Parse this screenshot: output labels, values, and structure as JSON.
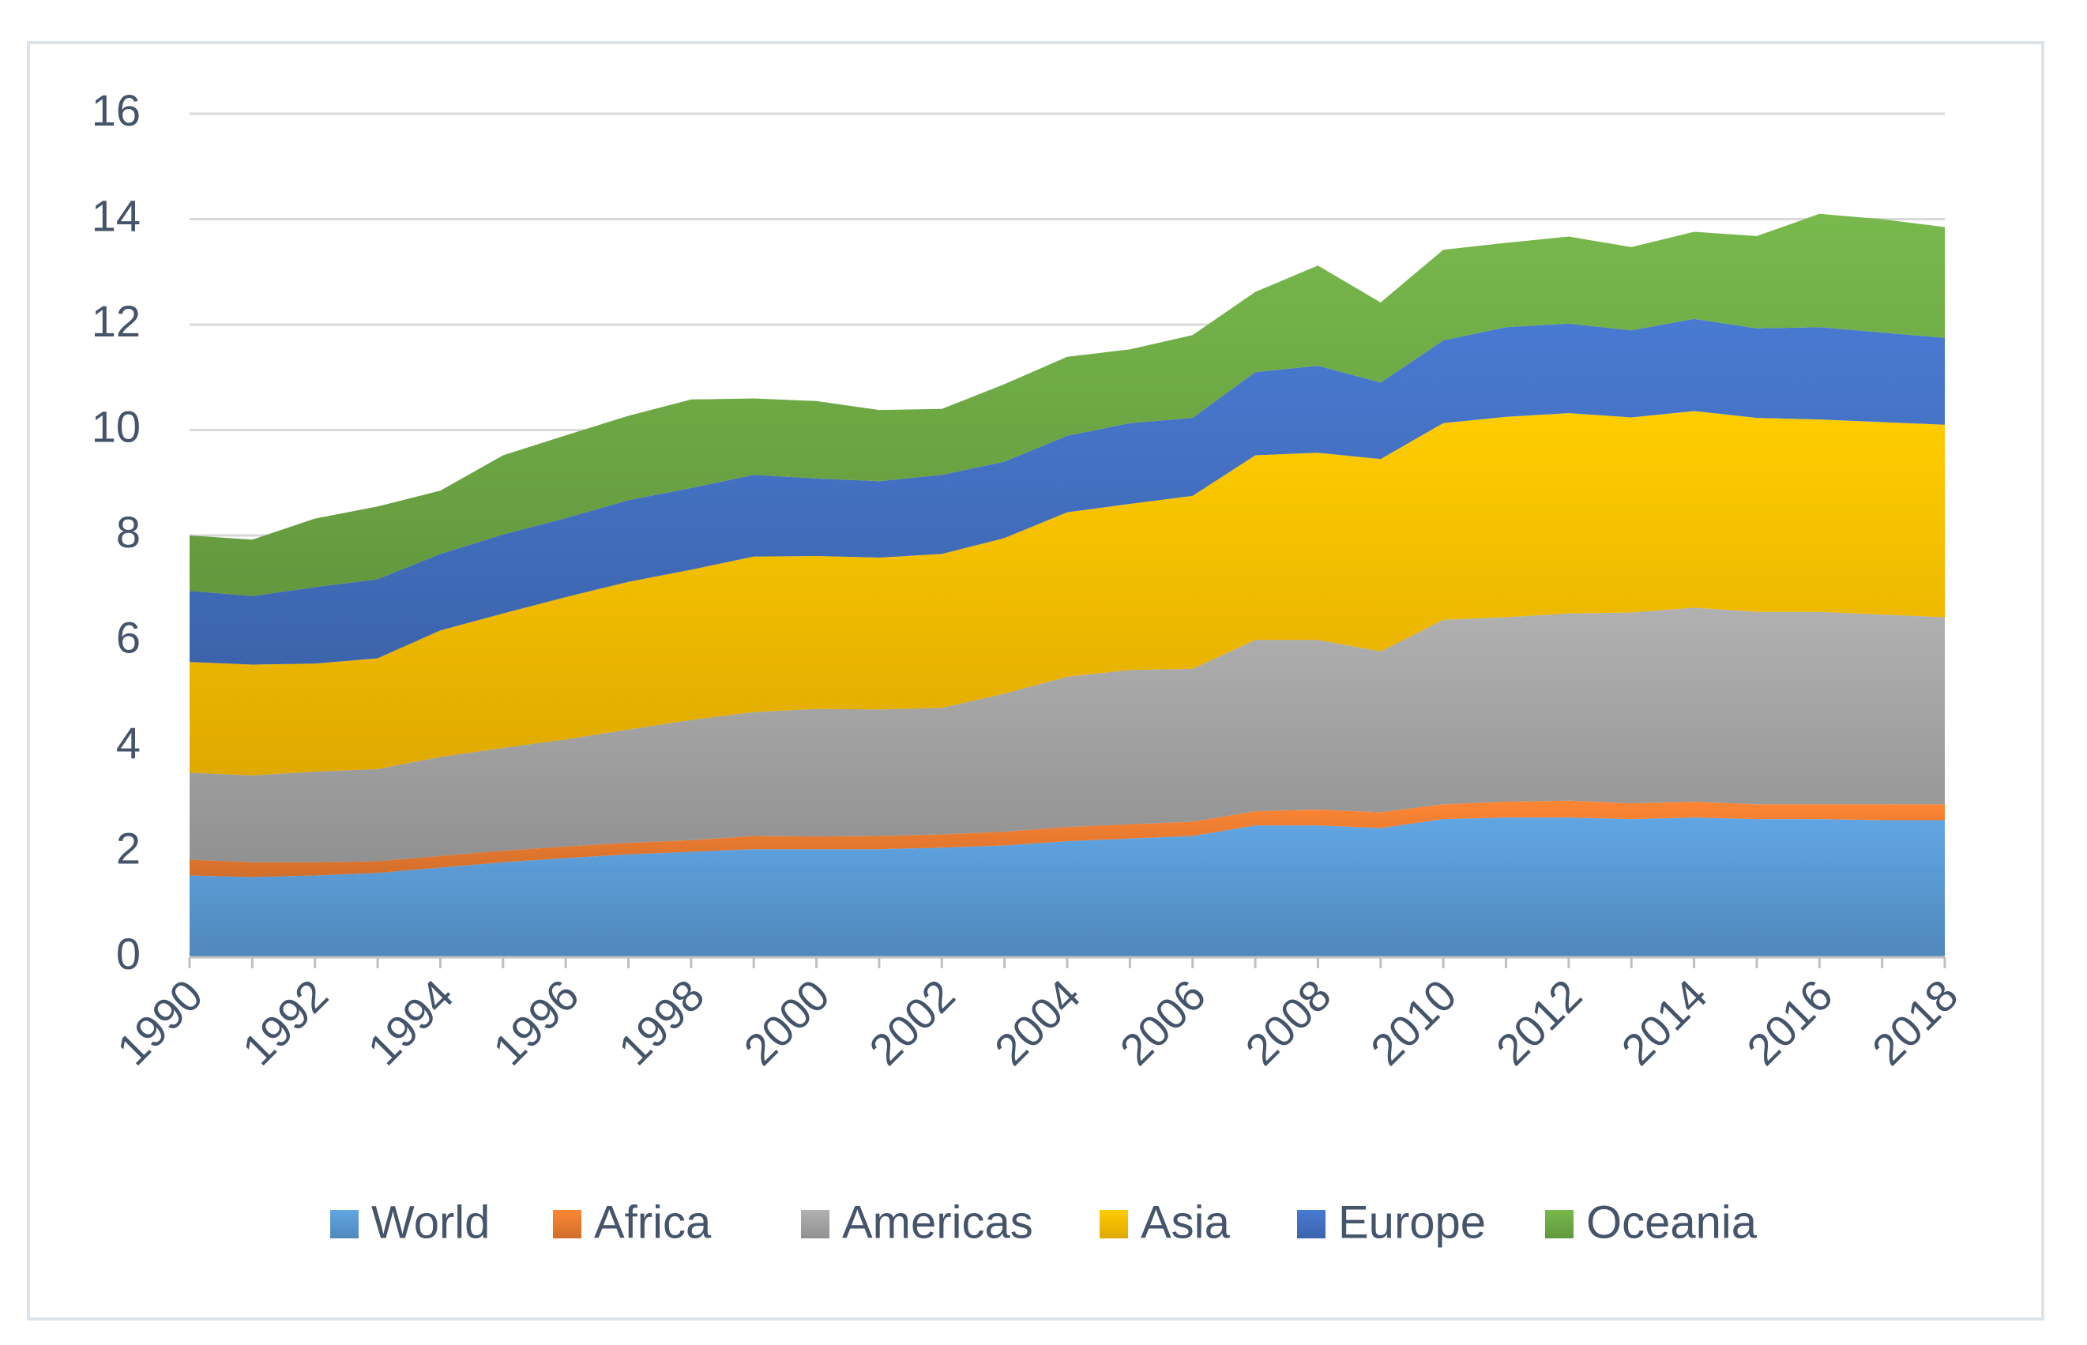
{
  "chart_data": {
    "type": "area",
    "stacked": true,
    "title": "",
    "xlabel": "",
    "ylabel": "",
    "ylim": [
      0,
      16
    ],
    "yticks": [
      0,
      2,
      4,
      6,
      8,
      10,
      12,
      14,
      16
    ],
    "xtick_labels": [
      "1990",
      "1992",
      "1994",
      "1996",
      "1998",
      "2000",
      "2002",
      "2004",
      "2006",
      "2008",
      "2010",
      "2012",
      "2014",
      "2016",
      "2018"
    ],
    "x": [
      1990,
      1991,
      1992,
      1993,
      1994,
      1995,
      1996,
      1997,
      1998,
      1999,
      2000,
      2001,
      2002,
      2003,
      2004,
      2005,
      2006,
      2007,
      2008,
      2009,
      2010,
      2011,
      2012,
      2013,
      2014,
      2015,
      2016,
      2017,
      2018
    ],
    "grid": true,
    "legend_position": "bottom",
    "series": [
      {
        "name": "World",
        "color": "#5b9bd5",
        "values": [
          1.55,
          1.52,
          1.55,
          1.6,
          1.7,
          1.8,
          1.88,
          1.95,
          2.0,
          2.05,
          2.05,
          2.05,
          2.08,
          2.12,
          2.2,
          2.25,
          2.3,
          2.5,
          2.5,
          2.45,
          2.62,
          2.65,
          2.65,
          2.62,
          2.65,
          2.62,
          2.62,
          2.6,
          2.6
        ]
      },
      {
        "name": "Africa",
        "color": "#ed7d31",
        "values": [
          0.3,
          0.28,
          0.25,
          0.22,
          0.22,
          0.22,
          0.22,
          0.22,
          0.22,
          0.25,
          0.24,
          0.25,
          0.25,
          0.26,
          0.27,
          0.27,
          0.27,
          0.27,
          0.3,
          0.3,
          0.28,
          0.3,
          0.32,
          0.3,
          0.3,
          0.28,
          0.28,
          0.3,
          0.3
        ]
      },
      {
        "name": "Americas",
        "color": "#a5a5a5",
        "values": [
          1.65,
          1.65,
          1.72,
          1.75,
          1.88,
          1.95,
          2.03,
          2.15,
          2.28,
          2.35,
          2.42,
          2.4,
          2.4,
          2.62,
          2.85,
          2.93,
          2.9,
          3.25,
          3.22,
          3.05,
          3.5,
          3.5,
          3.55,
          3.62,
          3.68,
          3.65,
          3.65,
          3.6,
          3.55
        ]
      },
      {
        "name": "Asia",
        "color": "#ffc000",
        "values": [
          2.1,
          2.1,
          2.05,
          2.1,
          2.4,
          2.55,
          2.7,
          2.8,
          2.85,
          2.95,
          2.9,
          2.88,
          2.92,
          2.95,
          3.12,
          3.15,
          3.28,
          3.5,
          3.55,
          3.65,
          3.73,
          3.8,
          3.8,
          3.7,
          3.73,
          3.68,
          3.65,
          3.65,
          3.65
        ]
      },
      {
        "name": "Europe",
        "color": "#4472c4",
        "values": [
          1.35,
          1.3,
          1.45,
          1.5,
          1.45,
          1.5,
          1.5,
          1.55,
          1.55,
          1.55,
          1.47,
          1.45,
          1.5,
          1.45,
          1.45,
          1.53,
          1.48,
          1.58,
          1.65,
          1.45,
          1.57,
          1.7,
          1.7,
          1.65,
          1.75,
          1.7,
          1.75,
          1.7,
          1.65
        ]
      },
      {
        "name": "Oceania",
        "color": "#70ad47",
        "values": [
          1.05,
          1.07,
          1.3,
          1.38,
          1.2,
          1.5,
          1.57,
          1.6,
          1.68,
          1.45,
          1.47,
          1.35,
          1.25,
          1.47,
          1.5,
          1.4,
          1.57,
          1.52,
          1.9,
          1.52,
          1.72,
          1.6,
          1.65,
          1.58,
          1.65,
          1.75,
          2.15,
          2.15,
          2.1
        ]
      }
    ]
  }
}
